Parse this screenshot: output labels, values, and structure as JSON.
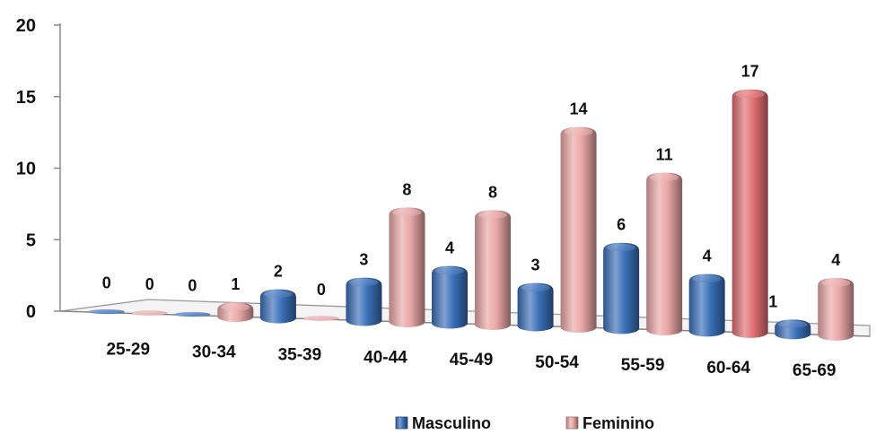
{
  "chart_data": {
    "type": "bar",
    "categories": [
      "25-29",
      "30-34",
      "35-39",
      "40-44",
      "45-49",
      "50-54",
      "55-59",
      "60-64",
      "65-69"
    ],
    "series": [
      {
        "name": "Masculino",
        "values": [
          0,
          0,
          2,
          3,
          4,
          3,
          6,
          4,
          1
        ],
        "color": "#3a6fb8"
      },
      {
        "name": "Feminino",
        "values": [
          0,
          1,
          0,
          8,
          8,
          14,
          11,
          17,
          4
        ],
        "color": "#e9a6a6"
      }
    ],
    "highlight_color": "#e06f72",
    "yticks": [
      0,
      5,
      10,
      15,
      20
    ],
    "ylim": [
      0,
      20
    ],
    "legend_position": "bottom",
    "style": "3d-cylinder",
    "grid": false
  }
}
